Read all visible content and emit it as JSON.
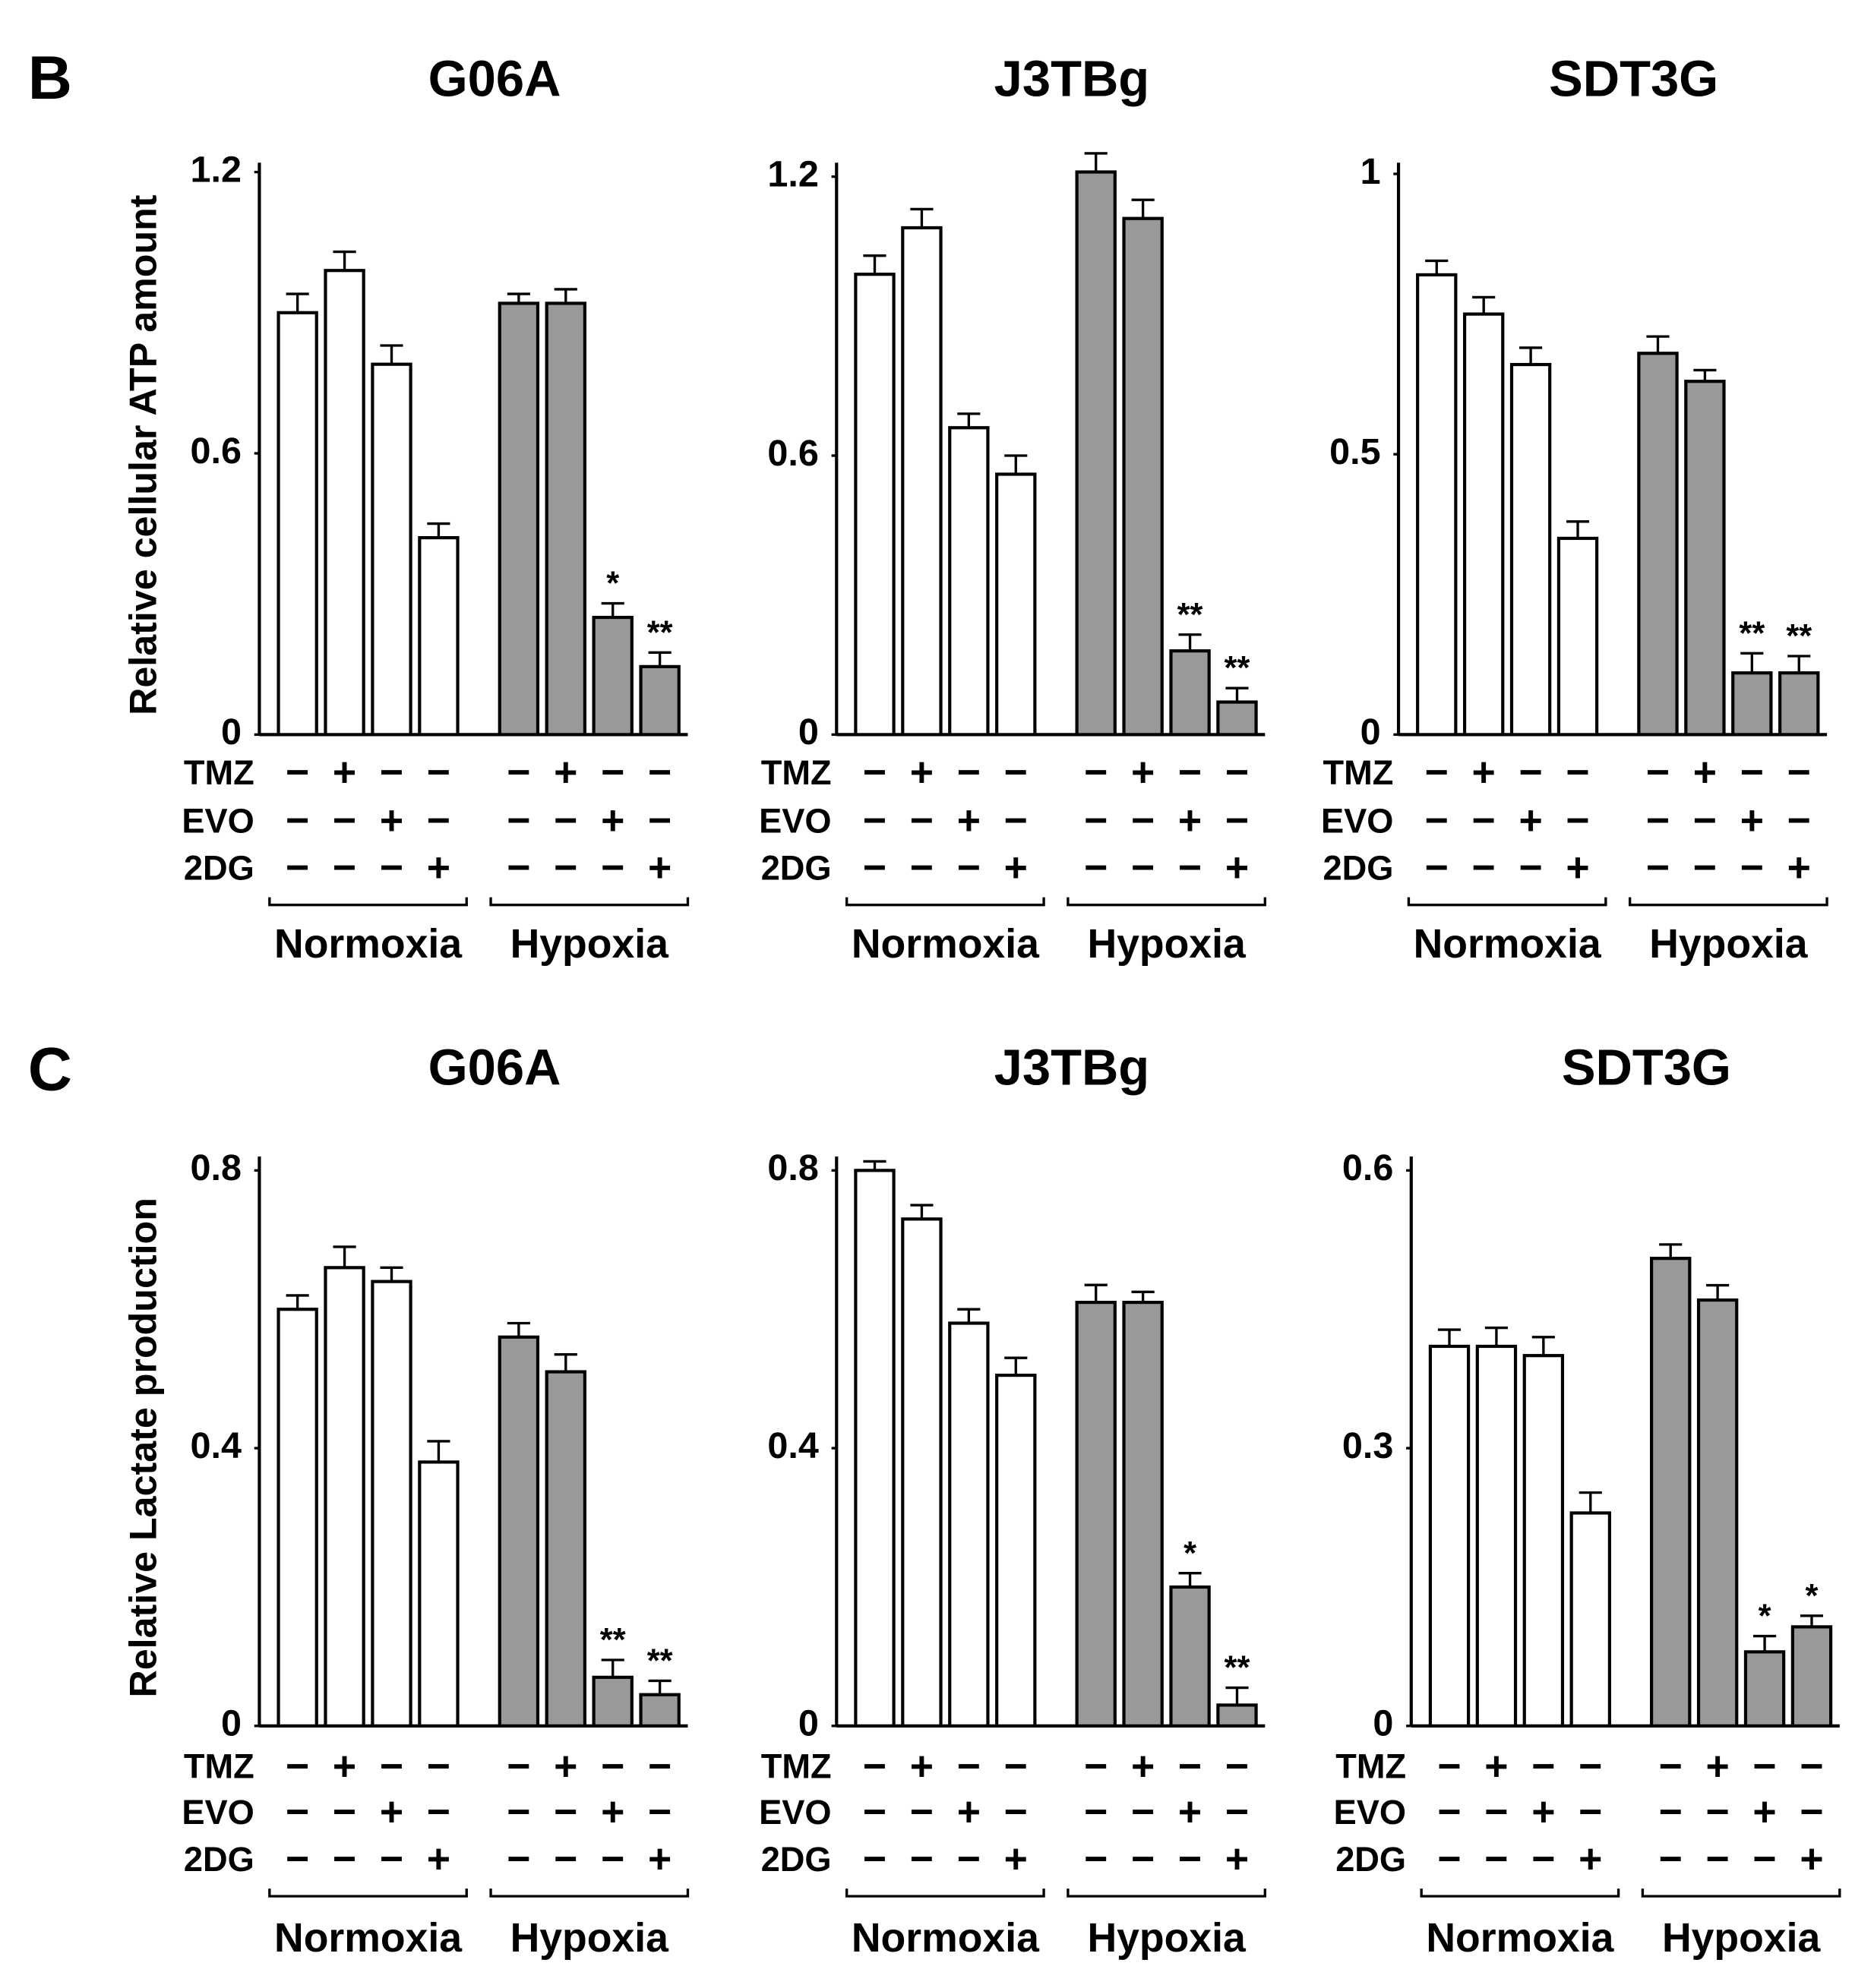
{
  "panel_labels": [
    "B",
    "C"
  ],
  "chart_data": [
    {
      "type": "bar",
      "title": "G06A",
      "ylabel": "Relative cellular ATP amount",
      "ylim": [
        0,
        1.22
      ],
      "yticks": [
        0,
        0.6,
        1.2
      ],
      "values": [
        0.9,
        0.99,
        0.79,
        0.42,
        0.92,
        0.92,
        0.25,
        0.145
      ],
      "errors": [
        0.04,
        0.04,
        0.04,
        0.03,
        0.02,
        0.03,
        0.03,
        0.03
      ],
      "colors": [
        "#ffffff",
        "#ffffff",
        "#ffffff",
        "#ffffff",
        "#999999",
        "#999999",
        "#999999",
        "#999999"
      ],
      "annotations": [
        null,
        null,
        null,
        null,
        null,
        null,
        "*",
        "**"
      ],
      "treatments": [
        {
          "name": "TMZ",
          "signs": [
            "−",
            "+",
            "−",
            "−",
            "−",
            "+",
            "−",
            "−"
          ]
        },
        {
          "name": "EVO",
          "signs": [
            "−",
            "−",
            "+",
            "−",
            "−",
            "−",
            "+",
            "−"
          ]
        },
        {
          "name": "2DG",
          "signs": [
            "−",
            "−",
            "−",
            "+",
            "−",
            "−",
            "−",
            "+"
          ]
        }
      ],
      "groups": [
        "Normoxia",
        "Hypoxia"
      ]
    },
    {
      "type": "bar",
      "title": "J3TBg",
      "ylim": [
        0,
        1.23
      ],
      "yticks": [
        0,
        0.6,
        1.2
      ],
      "values": [
        0.99,
        1.09,
        0.66,
        0.56,
        1.21,
        1.11,
        0.18,
        0.07
      ],
      "errors": [
        0.04,
        0.04,
        0.03,
        0.04,
        0.04,
        0.04,
        0.035,
        0.03
      ],
      "colors": [
        "#ffffff",
        "#ffffff",
        "#ffffff",
        "#ffffff",
        "#999999",
        "#999999",
        "#999999",
        "#999999"
      ],
      "annotations": [
        null,
        null,
        null,
        null,
        null,
        null,
        "**",
        "**"
      ],
      "treatments": [
        {
          "name": "TMZ",
          "signs": [
            "−",
            "+",
            "−",
            "−",
            "−",
            "+",
            "−",
            "−"
          ]
        },
        {
          "name": "EVO",
          "signs": [
            "−",
            "−",
            "+",
            "−",
            "−",
            "−",
            "+",
            "−"
          ]
        },
        {
          "name": "2DG",
          "signs": [
            "−",
            "−",
            "−",
            "+",
            "−",
            "−",
            "−",
            "+"
          ]
        }
      ],
      "groups": [
        "Normoxia",
        "Hypoxia"
      ]
    },
    {
      "type": "bar",
      "title": "SDT3G",
      "ylim": [
        0,
        1.02
      ],
      "yticks": [
        0,
        0.5,
        1.0
      ],
      "values": [
        0.82,
        0.75,
        0.66,
        0.35,
        0.68,
        0.63,
        0.11,
        0.11
      ],
      "errors": [
        0.025,
        0.03,
        0.03,
        0.03,
        0.03,
        0.02,
        0.035,
        0.03
      ],
      "colors": [
        "#ffffff",
        "#ffffff",
        "#ffffff",
        "#ffffff",
        "#999999",
        "#999999",
        "#999999",
        "#999999"
      ],
      "annotations": [
        null,
        null,
        null,
        null,
        null,
        null,
        "**",
        "**"
      ],
      "treatments": [
        {
          "name": "TMZ",
          "signs": [
            "−",
            "+",
            "−",
            "−",
            "−",
            "+",
            "−",
            "−"
          ]
        },
        {
          "name": "EVO",
          "signs": [
            "−",
            "−",
            "+",
            "−",
            "−",
            "−",
            "+",
            "−"
          ]
        },
        {
          "name": "2DG",
          "signs": [
            "−",
            "−",
            "−",
            "+",
            "−",
            "−",
            "−",
            "+"
          ]
        }
      ],
      "groups": [
        "Normoxia",
        "Hypoxia"
      ]
    },
    {
      "type": "bar",
      "title": "G06A",
      "ylabel": "Relative Lactate production",
      "ylim": [
        0,
        0.82
      ],
      "yticks": [
        0,
        0.4,
        0.8
      ],
      "values": [
        0.6,
        0.66,
        0.64,
        0.38,
        0.56,
        0.51,
        0.07,
        0.045
      ],
      "errors": [
        0.02,
        0.03,
        0.02,
        0.03,
        0.02,
        0.025,
        0.025,
        0.02
      ],
      "colors": [
        "#ffffff",
        "#ffffff",
        "#ffffff",
        "#ffffff",
        "#999999",
        "#999999",
        "#999999",
        "#999999"
      ],
      "annotations": [
        null,
        null,
        null,
        null,
        null,
        null,
        "**",
        "**"
      ],
      "treatments": [
        {
          "name": "TMZ",
          "signs": [
            "−",
            "+",
            "−",
            "−",
            "−",
            "+",
            "−",
            "−"
          ]
        },
        {
          "name": "EVO",
          "signs": [
            "−",
            "−",
            "+",
            "−",
            "−",
            "−",
            "+",
            "−"
          ]
        },
        {
          "name": "2DG",
          "signs": [
            "−",
            "−",
            "−",
            "+",
            "−",
            "−",
            "−",
            "+"
          ]
        }
      ],
      "groups": [
        "Normoxia",
        "Hypoxia"
      ]
    },
    {
      "type": "bar",
      "title": "J3TBg",
      "ylim": [
        0,
        0.82
      ],
      "yticks": [
        0,
        0.4,
        0.8
      ],
      "values": [
        0.8,
        0.73,
        0.58,
        0.505,
        0.61,
        0.61,
        0.2,
        0.03
      ],
      "errors": [
        0.013,
        0.02,
        0.02,
        0.025,
        0.025,
        0.015,
        0.02,
        0.025
      ],
      "colors": [
        "#ffffff",
        "#ffffff",
        "#ffffff",
        "#ffffff",
        "#999999",
        "#999999",
        "#999999",
        "#999999"
      ],
      "annotations": [
        null,
        null,
        null,
        null,
        null,
        null,
        "*",
        "**"
      ],
      "treatments": [
        {
          "name": "TMZ",
          "signs": [
            "−",
            "+",
            "−",
            "−",
            "−",
            "+",
            "−",
            "−"
          ]
        },
        {
          "name": "EVO",
          "signs": [
            "−",
            "−",
            "+",
            "−",
            "−",
            "−",
            "+",
            "−"
          ]
        },
        {
          "name": "2DG",
          "signs": [
            "−",
            "−",
            "−",
            "+",
            "−",
            "−",
            "−",
            "+"
          ]
        }
      ],
      "groups": [
        "Normoxia",
        "Hypoxia"
      ]
    },
    {
      "type": "bar",
      "title": "SDT3G",
      "ylim": [
        0,
        0.615
      ],
      "yticks": [
        0,
        0.3,
        0.6
      ],
      "values": [
        0.41,
        0.41,
        0.4,
        0.23,
        0.505,
        0.46,
        0.08,
        0.107
      ],
      "errors": [
        0.018,
        0.02,
        0.02,
        0.022,
        0.015,
        0.016,
        0.017,
        0.012
      ],
      "colors": [
        "#ffffff",
        "#ffffff",
        "#ffffff",
        "#ffffff",
        "#999999",
        "#999999",
        "#999999",
        "#999999"
      ],
      "annotations": [
        null,
        null,
        null,
        null,
        null,
        null,
        "*",
        "*"
      ],
      "treatments": [
        {
          "name": "TMZ",
          "signs": [
            "−",
            "+",
            "−",
            "−",
            "−",
            "+",
            "−",
            "−"
          ]
        },
        {
          "name": "EVO",
          "signs": [
            "−",
            "−",
            "+",
            "−",
            "−",
            "−",
            "+",
            "−"
          ]
        },
        {
          "name": "2DG",
          "signs": [
            "−",
            "−",
            "−",
            "+",
            "−",
            "−",
            "−",
            "+"
          ]
        }
      ],
      "groups": [
        "Normoxia",
        "Hypoxia"
      ]
    }
  ]
}
